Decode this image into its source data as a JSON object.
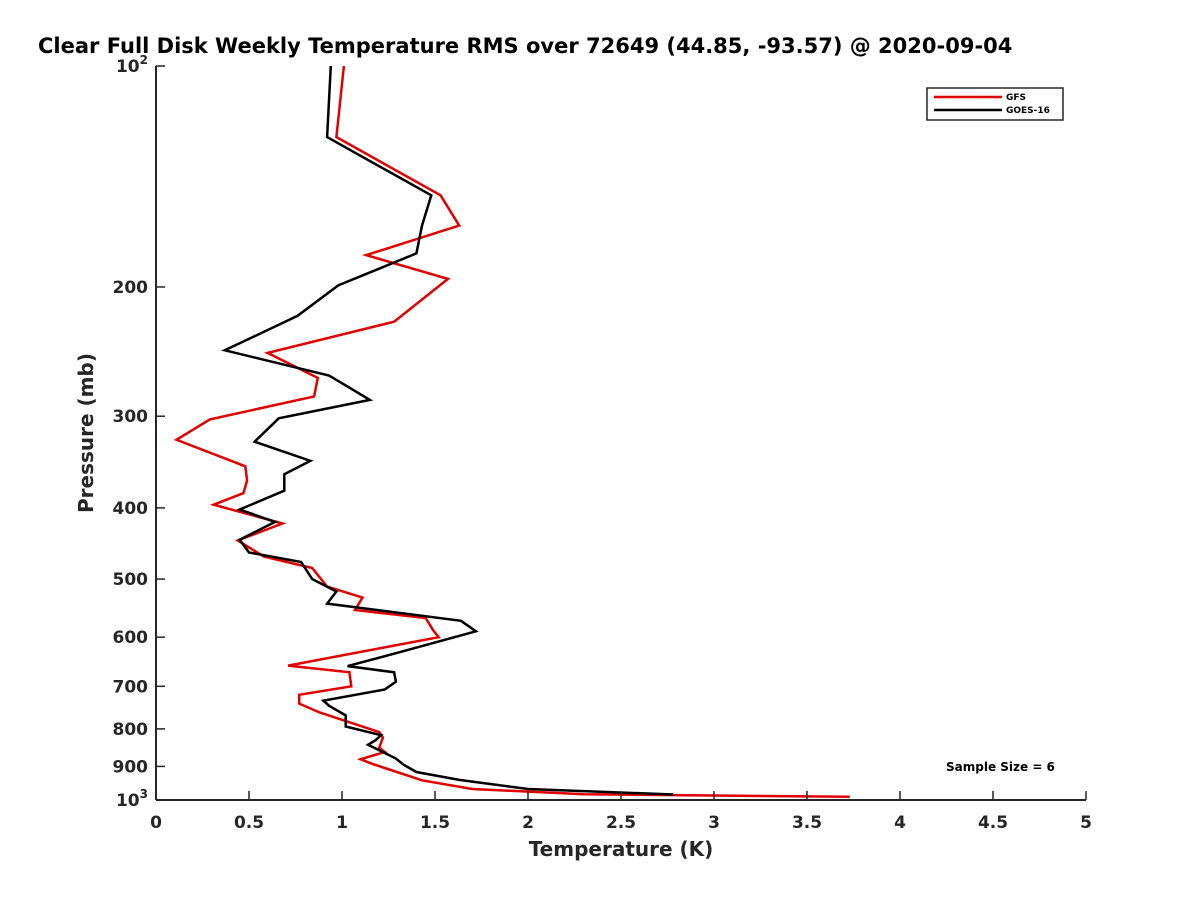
{
  "chart_data": {
    "type": "line",
    "title": "Clear Full Disk Weekly Temperature RMS over 72649 (44.85, -93.57) @ 2020-09-04",
    "xlabel": "Temperature (K)",
    "ylabel": "Pressure (mb)",
    "xlim": [
      0,
      5
    ],
    "ylim": [
      100,
      1000
    ],
    "y_scale": "log",
    "y_reversed": true,
    "grid": false,
    "legend_position": "top-right",
    "x_ticks": [
      "0",
      "0.5",
      "1",
      "1.5",
      "2",
      "2.5",
      "3",
      "3.5",
      "4",
      "4.5",
      "5"
    ],
    "x_tick_values": [
      0,
      0.5,
      1,
      1.5,
      2,
      2.5,
      3,
      3.5,
      4,
      4.5,
      5
    ],
    "y_ticks": [
      {
        "value": 100,
        "base": "10",
        "exp": "2"
      },
      {
        "value": 200,
        "label": "200"
      },
      {
        "value": 300,
        "label": "300"
      },
      {
        "value": 400,
        "label": "400"
      },
      {
        "value": 500,
        "label": "500"
      },
      {
        "value": 600,
        "label": "600"
      },
      {
        "value": 700,
        "label": "700"
      },
      {
        "value": 800,
        "label": "800"
      },
      {
        "value": 900,
        "label": "900"
      },
      {
        "value": 1000,
        "base": "10",
        "exp": "3"
      }
    ],
    "annotation": "Sample Size = 6",
    "series": [
      {
        "name": "GFS",
        "color": "#e00000",
        "points": [
          [
            1.01,
            100
          ],
          [
            0.97,
            125
          ],
          [
            1.53,
            150
          ],
          [
            1.63,
            165
          ],
          [
            1.13,
            181
          ],
          [
            1.57,
            195
          ],
          [
            1.28,
            223
          ],
          [
            0.6,
            246
          ],
          [
            0.87,
            266
          ],
          [
            0.85,
            282
          ],
          [
            0.29,
            303
          ],
          [
            0.11,
            323
          ],
          [
            0.48,
            351
          ],
          [
            0.49,
            367
          ],
          [
            0.47,
            382
          ],
          [
            0.31,
            396
          ],
          [
            0.68,
            420
          ],
          [
            0.44,
            443
          ],
          [
            0.58,
            466
          ],
          [
            0.84,
            483
          ],
          [
            0.92,
            512
          ],
          [
            1.11,
            530
          ],
          [
            1.07,
            551
          ],
          [
            1.45,
            565
          ],
          [
            1.49,
            587
          ],
          [
            1.52,
            600
          ],
          [
            0.71,
            656
          ],
          [
            1.04,
            670
          ],
          [
            1.05,
            700
          ],
          [
            0.77,
            719
          ],
          [
            0.77,
            739
          ],
          [
            0.88,
            760
          ],
          [
            1.2,
            808
          ],
          [
            1.22,
            822
          ],
          [
            1.2,
            849
          ],
          [
            1.23,
            860
          ],
          [
            1.1,
            880
          ],
          [
            1.17,
            894
          ],
          [
            1.43,
            940
          ],
          [
            1.7,
            966
          ],
          [
            2.3,
            982
          ],
          [
            3.73,
            990
          ]
        ]
      },
      {
        "name": "GOES-16",
        "color": "#000000",
        "points": [
          [
            0.94,
            100
          ],
          [
            0.92,
            125
          ],
          [
            1.48,
            150
          ],
          [
            1.43,
            165
          ],
          [
            1.4,
            180
          ],
          [
            0.98,
            199
          ],
          [
            0.76,
            219
          ],
          [
            0.37,
            244
          ],
          [
            0.93,
            264
          ],
          [
            1.15,
            285
          ],
          [
            0.66,
            302
          ],
          [
            0.53,
            325
          ],
          [
            0.83,
            345
          ],
          [
            0.69,
            360
          ],
          [
            0.69,
            379
          ],
          [
            0.45,
            402
          ],
          [
            0.64,
            418
          ],
          [
            0.45,
            442
          ],
          [
            0.5,
            460
          ],
          [
            0.78,
            474
          ],
          [
            0.84,
            500
          ],
          [
            0.97,
            520
          ],
          [
            0.92,
            540
          ],
          [
            1.64,
            570
          ],
          [
            1.72,
            589
          ],
          [
            1.3,
            630
          ],
          [
            1.03,
            657
          ],
          [
            1.28,
            670
          ],
          [
            1.29,
            690
          ],
          [
            1.23,
            707
          ],
          [
            0.9,
            732
          ],
          [
            0.93,
            744
          ],
          [
            1.02,
            767
          ],
          [
            1.02,
            794
          ],
          [
            1.21,
            816
          ],
          [
            1.18,
            829
          ],
          [
            1.14,
            841
          ],
          [
            1.23,
            863
          ],
          [
            1.29,
            878
          ],
          [
            1.33,
            895
          ],
          [
            1.4,
            916
          ],
          [
            1.63,
            939
          ],
          [
            2.0,
            966
          ],
          [
            2.78,
            983
          ]
        ]
      }
    ]
  }
}
